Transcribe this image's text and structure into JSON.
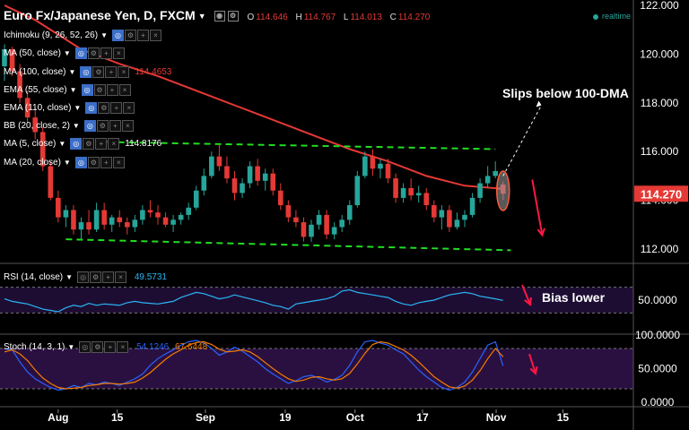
{
  "header": {
    "title": "Euro Fx/Japanese Yen, D, FXCM",
    "ohlc": [
      {
        "key": "O",
        "value": "114.646"
      },
      {
        "key": "H",
        "value": "114.767"
      },
      {
        "key": "L",
        "value": "114.013"
      },
      {
        "key": "C",
        "value": "114.270"
      }
    ],
    "realtime": "realtime"
  },
  "indicators": [
    {
      "label": "Ichimoku (9, 26, 52, 26)",
      "value": ""
    },
    {
      "label": "MA (50, close)",
      "value": ""
    },
    {
      "label": "MA (100, close)",
      "value": "114.4653",
      "value_color": "#e53935"
    },
    {
      "label": "EMA (55, close)",
      "value": ""
    },
    {
      "label": "EMA (110, close)",
      "value": ""
    },
    {
      "label": "BB (20, close, 2)",
      "value": ""
    },
    {
      "label": "MA (5, close)",
      "value": "114.8176"
    },
    {
      "label": "MA (20, close)",
      "value": ""
    }
  ],
  "annotations": {
    "slips": "Slips below 100-DMA",
    "bias": "Bias lower"
  },
  "colors": {
    "up": "#26a69a",
    "down": "#e53935",
    "ma100": "#e53935",
    "channel": "#22dd22",
    "rsi": "#29b6f6",
    "stoch_k": "#2962ff",
    "stoch_d": "#f57c00",
    "stoch_band": "#2a1040",
    "rsi_band": "#1e0d33"
  },
  "chart_data": [
    {
      "type": "candlestick",
      "title": "Euro Fx/Japanese Yen, D, FXCM",
      "ylim": [
        111.4,
        122.0
      ],
      "yticks": [
        "122.000",
        "120.000",
        "118.000",
        "116.000",
        "114.000",
        "112.000"
      ],
      "last_price_label": "114.270",
      "x_ticks": [
        "Aug",
        "15",
        "Sep",
        "19",
        "Oct",
        "17",
        "Nov",
        "15"
      ],
      "candles": [
        [
          119.5,
          120.4,
          118.9,
          120.2
        ],
        [
          120.2,
          120.3,
          119.1,
          119.3
        ],
        [
          119.3,
          119.6,
          118.0,
          118.2
        ],
        [
          118.2,
          118.5,
          117.2,
          117.4
        ],
        [
          117.4,
          117.8,
          116.5,
          116.8
        ],
        [
          116.8,
          117.0,
          115.2,
          115.4
        ],
        [
          115.4,
          115.6,
          114.0,
          114.1
        ],
        [
          114.1,
          114.4,
          113.1,
          113.3
        ],
        [
          113.3,
          113.8,
          112.9,
          113.6
        ],
        [
          113.6,
          113.8,
          112.6,
          112.8
        ],
        [
          112.8,
          113.3,
          112.4,
          113.1
        ],
        [
          113.1,
          113.6,
          112.6,
          112.8
        ],
        [
          112.8,
          113.9,
          112.7,
          113.6
        ],
        [
          113.6,
          113.9,
          112.8,
          113.0
        ],
        [
          113.0,
          113.4,
          112.7,
          113.3
        ],
        [
          113.3,
          113.6,
          112.9,
          113.1
        ],
        [
          113.1,
          113.3,
          112.6,
          112.9
        ],
        [
          112.9,
          113.4,
          112.7,
          113.2
        ],
        [
          113.2,
          113.8,
          113.0,
          113.6
        ],
        [
          113.6,
          114.0,
          113.3,
          113.5
        ],
        [
          113.5,
          113.8,
          113.0,
          113.3
        ],
        [
          113.3,
          113.5,
          112.9,
          113.0
        ],
        [
          113.0,
          113.4,
          112.7,
          113.2
        ],
        [
          113.2,
          113.5,
          113.0,
          113.4
        ],
        [
          113.4,
          113.9,
          113.2,
          113.7
        ],
        [
          113.7,
          114.6,
          113.6,
          114.4
        ],
        [
          114.4,
          115.3,
          114.2,
          115.0
        ],
        [
          115.0,
          116.0,
          114.9,
          115.8
        ],
        [
          115.8,
          116.3,
          115.2,
          115.4
        ],
        [
          115.4,
          115.8,
          114.7,
          114.9
        ],
        [
          114.9,
          115.2,
          114.0,
          114.3
        ],
        [
          114.3,
          114.9,
          114.1,
          114.7
        ],
        [
          114.7,
          115.6,
          114.5,
          115.4
        ],
        [
          115.4,
          115.7,
          114.6,
          114.8
        ],
        [
          114.8,
          115.3,
          114.4,
          115.1
        ],
        [
          115.1,
          115.3,
          114.2,
          114.4
        ],
        [
          114.4,
          114.7,
          113.6,
          113.8
        ],
        [
          113.8,
          114.0,
          113.1,
          113.3
        ],
        [
          113.3,
          113.6,
          112.9,
          113.1
        ],
        [
          113.1,
          113.3,
          112.3,
          112.5
        ],
        [
          112.5,
          113.2,
          112.3,
          113.0
        ],
        [
          113.0,
          113.6,
          112.8,
          113.4
        ],
        [
          113.4,
          113.6,
          112.4,
          112.6
        ],
        [
          112.6,
          113.1,
          112.4,
          112.9
        ],
        [
          112.9,
          113.4,
          112.7,
          113.2
        ],
        [
          113.2,
          114.0,
          113.0,
          113.8
        ],
        [
          113.8,
          115.2,
          113.7,
          115.0
        ],
        [
          115.0,
          116.0,
          114.9,
          115.8
        ],
        [
          115.8,
          116.1,
          115.0,
          115.3
        ],
        [
          115.3,
          115.7,
          114.9,
          115.5
        ],
        [
          115.5,
          115.7,
          114.7,
          114.9
        ],
        [
          114.9,
          115.1,
          113.9,
          114.1
        ],
        [
          114.1,
          114.7,
          113.9,
          114.5
        ],
        [
          114.5,
          114.9,
          114.0,
          114.2
        ],
        [
          114.2,
          114.6,
          113.9,
          114.3
        ],
        [
          114.3,
          114.5,
          113.6,
          113.8
        ],
        [
          113.8,
          114.0,
          113.1,
          113.3
        ],
        [
          113.3,
          113.8,
          112.8,
          113.6
        ],
        [
          113.6,
          113.8,
          112.7,
          112.9
        ],
        [
          112.9,
          113.5,
          112.8,
          113.2
        ],
        [
          113.2,
          113.6,
          112.9,
          113.4
        ],
        [
          113.4,
          114.3,
          113.3,
          114.1
        ],
        [
          114.1,
          114.9,
          113.9,
          114.7
        ],
        [
          114.7,
          115.4,
          114.5,
          115.0
        ],
        [
          115.0,
          115.6,
          114.9,
          115.2
        ],
        [
          114.646,
          114.767,
          114.013,
          114.27
        ]
      ],
      "ma100": [
        [
          0,
          122.0
        ],
        [
          4,
          121.4
        ],
        [
          10,
          120.2
        ],
        [
          15,
          119.6
        ],
        [
          20,
          119.1
        ],
        [
          25,
          118.5
        ],
        [
          30,
          117.9
        ],
        [
          35,
          117.3
        ],
        [
          40,
          116.7
        ],
        [
          45,
          116.1
        ],
        [
          50,
          115.6
        ],
        [
          55,
          115.0
        ],
        [
          60,
          114.6
        ],
        [
          65,
          114.4653
        ]
      ],
      "channel": {
        "upper": [
          [
            12,
            116.4
          ],
          [
            64,
            116.1
          ]
        ],
        "lower": [
          [
            8,
            112.4
          ],
          [
            66,
            111.95
          ]
        ]
      },
      "projection": {
        "from": [
          65,
          115.0
        ],
        "to": [
          70,
          117.9
        ]
      },
      "forecast_arrow": {
        "from": [
          66,
          114.7
        ],
        "to": [
          68,
          112.5
        ]
      }
    },
    {
      "type": "line",
      "title": "RSI (14, close)",
      "value_label": "49.5731",
      "yticks": [
        "50.0000"
      ],
      "ylim": [
        0,
        100
      ],
      "bands": [
        30,
        70
      ],
      "values": [
        52,
        48,
        46,
        44,
        40,
        36,
        34,
        32,
        38,
        42,
        40,
        45,
        42,
        44,
        43,
        42,
        46,
        48,
        46,
        45,
        44,
        46,
        48,
        54,
        58,
        62,
        60,
        56,
        52,
        54,
        58,
        55,
        52,
        49,
        46,
        42,
        40,
        36,
        44,
        46,
        48,
        50,
        52,
        56,
        64,
        66,
        62,
        60,
        58,
        56,
        54,
        48,
        44,
        42,
        46,
        48,
        50,
        54,
        58,
        60,
        62,
        60,
        56,
        54,
        52,
        49.5731
      ]
    },
    {
      "type": "line",
      "title": "Stoch (14, 3, 1)",
      "k_label": "54.1246",
      "d_label": "67.6448",
      "yticks": [
        "100.0000",
        "50.0000",
        "0.0000"
      ],
      "ylim": [
        0,
        100
      ],
      "bands": [
        20,
        80
      ],
      "series": [
        {
          "name": "K",
          "values": [
            80,
            78,
            60,
            45,
            35,
            28,
            22,
            18,
            20,
            25,
            22,
            28,
            26,
            30,
            28,
            25,
            30,
            35,
            42,
            55,
            65,
            72,
            78,
            85,
            90,
            92,
            88,
            80,
            70,
            75,
            82,
            76,
            68,
            60,
            50,
            42,
            35,
            28,
            32,
            38,
            40,
            36,
            30,
            34,
            40,
            55,
            75,
            90,
            92,
            88,
            85,
            78,
            72,
            60,
            48,
            38,
            30,
            22,
            18,
            22,
            30,
            45,
            65,
            85,
            90,
            54.1246
          ]
        },
        {
          "name": "D",
          "values": [
            75,
            78,
            72,
            62,
            48,
            36,
            28,
            22,
            20,
            21,
            22,
            25,
            26,
            28,
            28,
            27,
            28,
            30,
            36,
            44,
            54,
            64,
            72,
            78,
            85,
            89,
            90,
            86,
            79,
            75,
            76,
            78,
            75,
            68,
            59,
            50,
            42,
            35,
            31,
            33,
            37,
            38,
            35,
            33,
            35,
            43,
            57,
            73,
            86,
            90,
            88,
            83,
            78,
            70,
            60,
            49,
            38,
            30,
            23,
            21,
            24,
            33,
            47,
            65,
            80,
            67.6448
          ]
        }
      ]
    }
  ]
}
